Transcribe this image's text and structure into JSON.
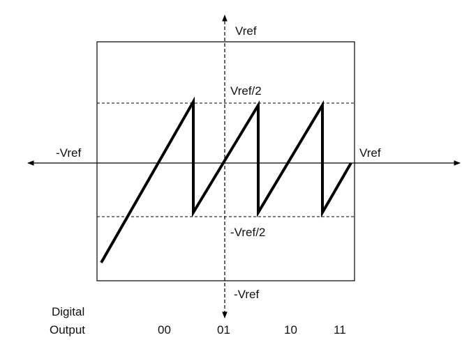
{
  "diagram": {
    "title": "",
    "labels": {
      "y_top": "Vref",
      "y_half_pos": "Vref/2",
      "x_left": "-Vref",
      "x_right": "Vref",
      "y_half_neg": "-Vref/2",
      "y_bottom": "-Vref"
    },
    "digital_output": {
      "label_line1": "Digital",
      "label_line2": "Output",
      "codes": [
        "00",
        "01",
        "10",
        "11"
      ]
    },
    "colors": {
      "line": "#000000",
      "text": "#111111"
    }
  }
}
